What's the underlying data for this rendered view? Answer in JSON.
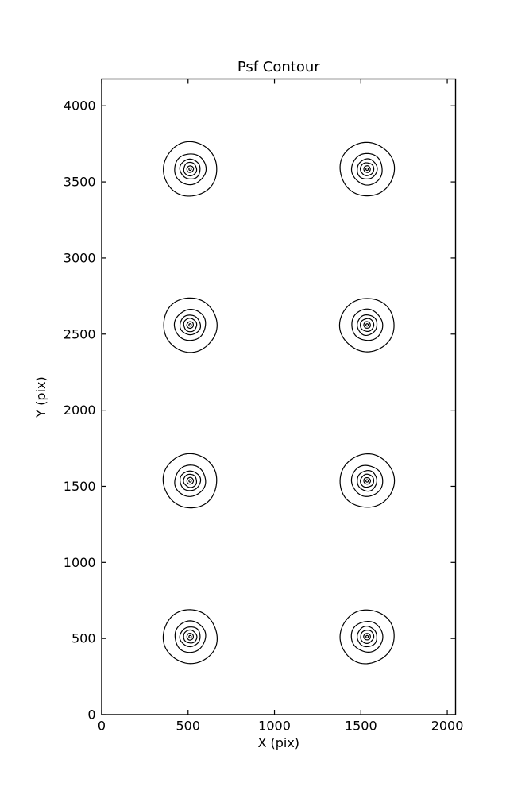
{
  "title": "Psf Contour",
  "axes": {
    "xlabel": "X (pix)",
    "ylabel": "Y (pix)"
  },
  "chart_data": {
    "type": "contour",
    "title": "Psf Contour",
    "xlabel": "X (pix)",
    "ylabel": "Y (pix)",
    "xlim": [
      0,
      2048
    ],
    "ylim": [
      0,
      4176
    ],
    "xticks": [
      0,
      500,
      1000,
      1500,
      2000
    ],
    "yticks": [
      0,
      500,
      1000,
      1500,
      2000,
      2500,
      3000,
      3500,
      4000
    ],
    "grid": false,
    "legend": null,
    "line_color": "#000000",
    "background": "#ffffff",
    "psf_positions": [
      {
        "x": 512,
        "y": 512
      },
      {
        "x": 1536,
        "y": 512
      },
      {
        "x": 512,
        "y": 1536
      },
      {
        "x": 1536,
        "y": 1536
      },
      {
        "x": 512,
        "y": 2560
      },
      {
        "x": 1536,
        "y": 2560
      },
      {
        "x": 512,
        "y": 3584
      },
      {
        "x": 1536,
        "y": 3584
      }
    ],
    "contour_radii": [
      156,
      90,
      58,
      38,
      19,
      7
    ]
  }
}
